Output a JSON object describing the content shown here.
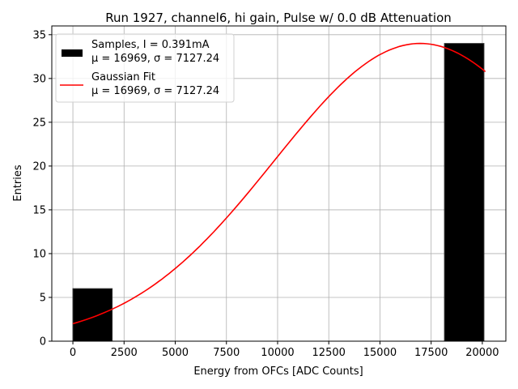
{
  "chart_data": {
    "type": "bar",
    "title": "Run 1927, channel6, hi gain, Pulse w/ 0.0 dB Attenuation",
    "xlabel": "Energy from OFCs [ADC Counts]",
    "ylabel": "Entries",
    "xlim": [
      -1030,
      21150
    ],
    "ylim": [
      0,
      36
    ],
    "xticks": [
      0,
      2500,
      5000,
      7500,
      10000,
      12500,
      15000,
      17500,
      20000
    ],
    "yticks": [
      0,
      5,
      10,
      15,
      20,
      25,
      30,
      35
    ],
    "grid": true,
    "legend_placement": "top-left",
    "bars": [
      {
        "x0": 0,
        "x1": 1920,
        "value": 6
      },
      {
        "x0": 18150,
        "x1": 20080,
        "value": 34
      }
    ],
    "fit": {
      "type": "gaussian",
      "amplitude": 34,
      "mu": 16969,
      "sigma": 7127.24,
      "x_range": [
        0,
        20150
      ]
    },
    "legend": [
      {
        "line1": "Samples, I = 0.391mA",
        "line2": "μ = 16969, σ = 7127.24",
        "color": "#000000"
      },
      {
        "line1": "Gaussian Fit",
        "line2": "μ = 16969, σ = 7127.24",
        "color": "#ff0000"
      }
    ]
  }
}
